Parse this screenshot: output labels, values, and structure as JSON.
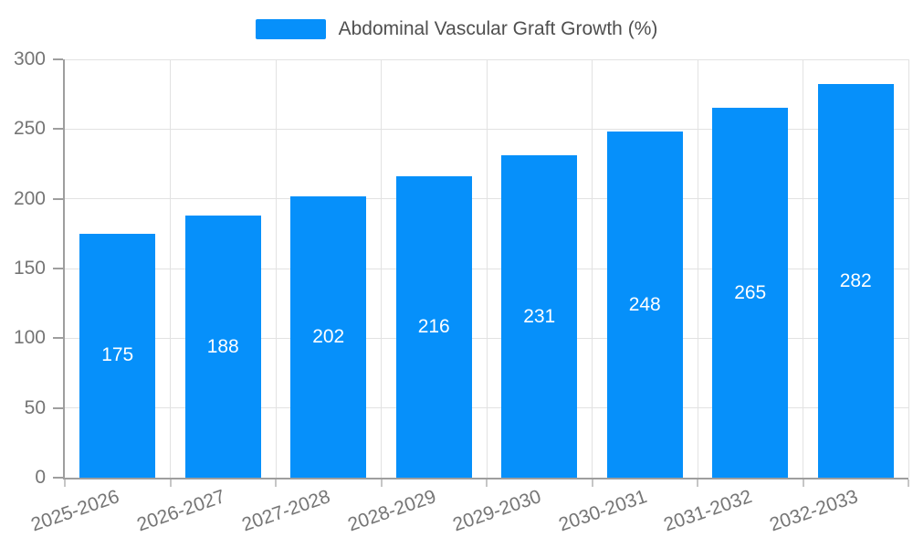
{
  "legend": {
    "label": "Abdominal Vascular Graft Growth (%)"
  },
  "chart_data": {
    "type": "bar",
    "title": "Abdominal Vascular Graft Growth (%)",
    "categories": [
      "2025-2026",
      "2026-2027",
      "2027-2028",
      "2028-2029",
      "2029-2030",
      "2030-2031",
      "2031-2032",
      "2032-2033"
    ],
    "values": [
      175,
      188,
      202,
      216,
      231,
      248,
      265,
      282
    ],
    "xlabel": "",
    "ylabel": "",
    "ylim": [
      0,
      300
    ],
    "yticks": [
      0,
      50,
      100,
      150,
      200,
      250,
      300
    ],
    "grid": true,
    "legend_position": "top-center",
    "x_label_rotation_deg": -19,
    "bar_value_labels_inside": true,
    "colors": {
      "bar": "#0690fa",
      "bar_label": "#ffffff",
      "axis": "#9e9e9e",
      "grid": "#e2e2e2",
      "tick_label": "#757575",
      "legend_text": "#4f4f4f",
      "background": "#ffffff"
    }
  }
}
